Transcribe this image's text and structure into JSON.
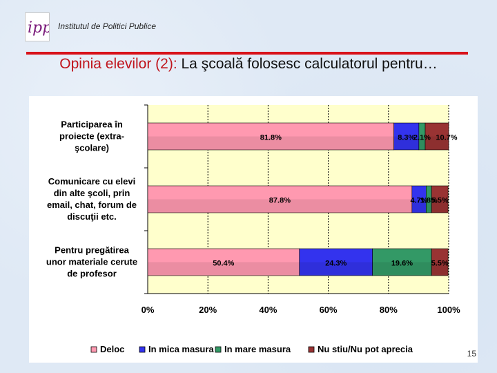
{
  "header": {
    "institute": "Institutul de Politici Publice",
    "logo_text": "ipp",
    "title_prefix": "Opinia elevilor (2):",
    "title_main": " La şcoală folosesc calculatorul pentru…"
  },
  "page_number": "15",
  "colors": {
    "accent_red": "#c0141c",
    "plot_bg": "#ffffcc"
  },
  "chart_data": {
    "type": "bar",
    "orientation": "horizontal",
    "stacked": "percent",
    "categories": [
      "Participarea în proiecte (extra-şcolare)",
      "Comunicare cu elevi din alte şcoli, prin email, chat, forum de discuţii etc.",
      "Pentru pregătirea unor materiale cerute de profesor"
    ],
    "category_lines": [
      [
        "Participarea în",
        "proiecte (extra-",
        "şcolare)"
      ],
      [
        "Comunicare cu elevi",
        "din alte şcoli, prin",
        "email, chat, forum de",
        "discuţii etc."
      ],
      [
        "Pentru pregătirea",
        "unor materiale cerute",
        "de profesor"
      ]
    ],
    "series": [
      {
        "name": "Deloc",
        "color": "#ff99b0",
        "values": [
          81.8,
          87.8,
          50.4
        ],
        "labels": [
          "81.8%",
          "87.8%",
          "50.4%"
        ]
      },
      {
        "name": "In mica masura",
        "color": "#3333ee",
        "values": [
          8.3,
          4.7,
          24.3
        ],
        "labels": [
          "8.3%",
          "4.7%",
          "24.3%"
        ]
      },
      {
        "name": "In mare masura",
        "color": "#339966",
        "values": [
          2.1,
          1.8,
          19.6
        ],
        "labels": [
          "2.1%",
          "1.8%",
          "19.6%"
        ]
      },
      {
        "name": "Nu stiu/Nu pot aprecia",
        "color": "#993333",
        "values": [
          10.7,
          5.5,
          5.5
        ],
        "labels": [
          "10.7%",
          "5.5%",
          "5.5%"
        ]
      }
    ],
    "xlim": [
      0,
      100
    ],
    "xticks": [
      "0%",
      "20%",
      "40%",
      "60%",
      "80%",
      "100%"
    ],
    "grid": true,
    "legend_position": "bottom"
  }
}
